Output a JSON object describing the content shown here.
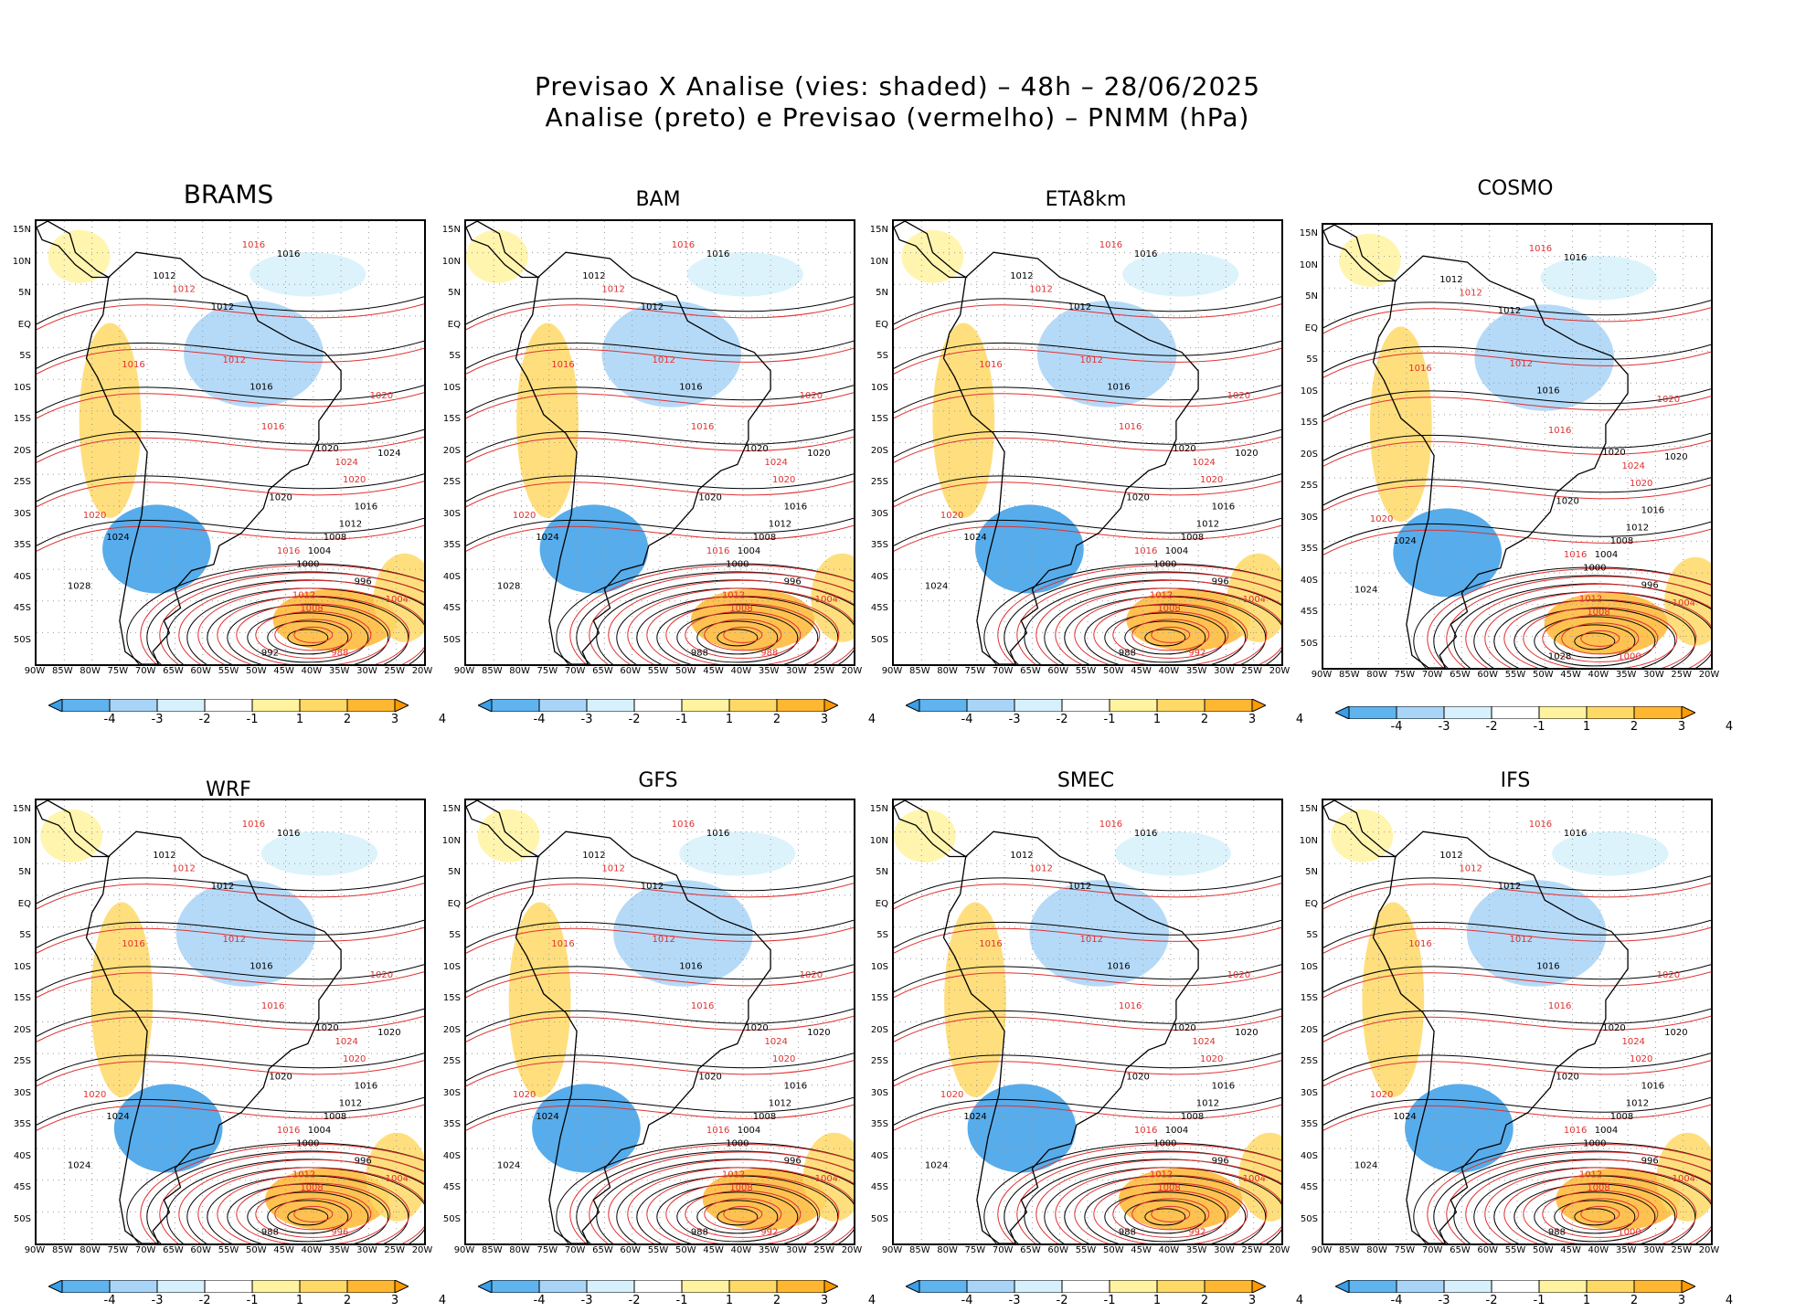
{
  "titles": {
    "line1": "Previsao X Analise (vies: shaded) – 48h – 28/06/2025",
    "line2": "Analise (preto) e Previsao (vermelho) – PNMM (hPa)"
  },
  "lat_labels": [
    "15N",
    "10N",
    "5N",
    "EQ",
    "5S",
    "10S",
    "15S",
    "20S",
    "25S",
    "30S",
    "35S",
    "40S",
    "45S",
    "50S"
  ],
  "lon_labels": [
    "90W",
    "85W",
    "80W",
    "75W",
    "70W",
    "65W",
    "60W",
    "55W",
    "50W",
    "45W",
    "40W",
    "35W",
    "30W",
    "25W",
    "20W"
  ],
  "colorbar": {
    "labels": [
      "-4",
      "-3",
      "-2",
      "-1",
      "1",
      "2",
      "3",
      "4"
    ],
    "colors": [
      "#3a9ee8",
      "#5fb4ef",
      "#a8d4f7",
      "#d6f1fb",
      "#ffffff",
      "#fff3a0",
      "#ffd966",
      "#ffb732",
      "#ff9a00"
    ]
  },
  "colors": {
    "analysis": "#000000",
    "forecast": "#e03030",
    "land": "#000000"
  },
  "panels": [
    {
      "name": "BRAMS",
      "labels_black": [
        "1016",
        "1012",
        "1012",
        "1016",
        "1020",
        "1020",
        "1016",
        "1012",
        "1008",
        "1004",
        "1000",
        "996",
        "992",
        "1028",
        "1024",
        "1024"
      ],
      "labels_red": [
        "1016",
        "1012",
        "1012",
        "1016",
        "1020",
        "1024",
        "1020",
        "1016",
        "1012",
        "1008",
        "1004",
        "988",
        "1016",
        "1020"
      ],
      "low_center": "988"
    },
    {
      "name": "BAM",
      "labels_black": [
        "1016",
        "1012",
        "1012",
        "1016",
        "1020",
        "1020",
        "1016",
        "1012",
        "1008",
        "1004",
        "1000",
        "996",
        "988",
        "1028",
        "1024",
        "1020"
      ],
      "labels_red": [
        "1016",
        "1012",
        "1012",
        "1016",
        "1020",
        "1024",
        "1020",
        "1016",
        "1012",
        "1008",
        "1004",
        "988",
        "1016",
        "1020"
      ],
      "low_center": "988"
    },
    {
      "name": "ETA8km",
      "labels_black": [
        "1016",
        "1012",
        "1012",
        "1016",
        "1020",
        "1020",
        "1016",
        "1012",
        "1008",
        "1004",
        "1000",
        "996",
        "988",
        "1024",
        "1024",
        "1020"
      ],
      "labels_red": [
        "1016",
        "1012",
        "1012",
        "1016",
        "1020",
        "1024",
        "1020",
        "1016",
        "1012",
        "1008",
        "1004",
        "992",
        "1016",
        "1020"
      ],
      "low_center": "988"
    },
    {
      "name": "COSMO",
      "labels_black": [
        "1016",
        "1012",
        "1012",
        "1016",
        "1020",
        "1020",
        "1016",
        "1012",
        "1008",
        "1004",
        "1000",
        "996",
        "1028",
        "1024",
        "1024",
        "1020"
      ],
      "labels_red": [
        "1016",
        "1012",
        "1012",
        "1016",
        "1020",
        "1024",
        "1020",
        "1016",
        "1012",
        "1008",
        "1004",
        "1000",
        "1016",
        "1020"
      ],
      "low_center": ""
    },
    {
      "name": "WRF",
      "labels_black": [
        "1016",
        "1012",
        "1012",
        "1016",
        "1020",
        "1020",
        "1016",
        "1012",
        "1008",
        "1004",
        "1000",
        "996",
        "988",
        "1024",
        "1024",
        "1020"
      ],
      "labels_red": [
        "1016",
        "1012",
        "1012",
        "1016",
        "1020",
        "1024",
        "1020",
        "1016",
        "1012",
        "1008",
        "1004",
        "996",
        "1016",
        "1020"
      ],
      "low_center": "988"
    },
    {
      "name": "GFS",
      "labels_black": [
        "1016",
        "1012",
        "1012",
        "1016",
        "1020",
        "1020",
        "1016",
        "1012",
        "1008",
        "1004",
        "1000",
        "996",
        "988",
        "1024",
        "1024",
        "1020"
      ],
      "labels_red": [
        "1016",
        "1012",
        "1012",
        "1016",
        "1020",
        "1024",
        "1020",
        "1016",
        "1012",
        "1008",
        "1004",
        "992",
        "1016",
        "1020"
      ],
      "low_center": "988"
    },
    {
      "name": "SMEC",
      "labels_black": [
        "1016",
        "1012",
        "1012",
        "1016",
        "1020",
        "1020",
        "1016",
        "1012",
        "1008",
        "1004",
        "1000",
        "996",
        "988",
        "1024",
        "1024",
        "1020"
      ],
      "labels_red": [
        "1016",
        "1012",
        "1012",
        "1016",
        "1020",
        "1024",
        "1020",
        "1016",
        "1012",
        "1008",
        "1004",
        "992",
        "1016",
        "1020"
      ],
      "low_center": "988"
    },
    {
      "name": "IFS",
      "labels_black": [
        "1016",
        "1012",
        "1012",
        "1016",
        "1020",
        "1020",
        "1016",
        "1012",
        "1008",
        "1004",
        "1000",
        "996",
        "988",
        "1024",
        "1024",
        "1020"
      ],
      "labels_red": [
        "1016",
        "1012",
        "1012",
        "1016",
        "1020",
        "1024",
        "1020",
        "1016",
        "1012",
        "1008",
        "1004",
        "1000",
        "1016",
        "1020"
      ],
      "low_center": "988"
    }
  ]
}
